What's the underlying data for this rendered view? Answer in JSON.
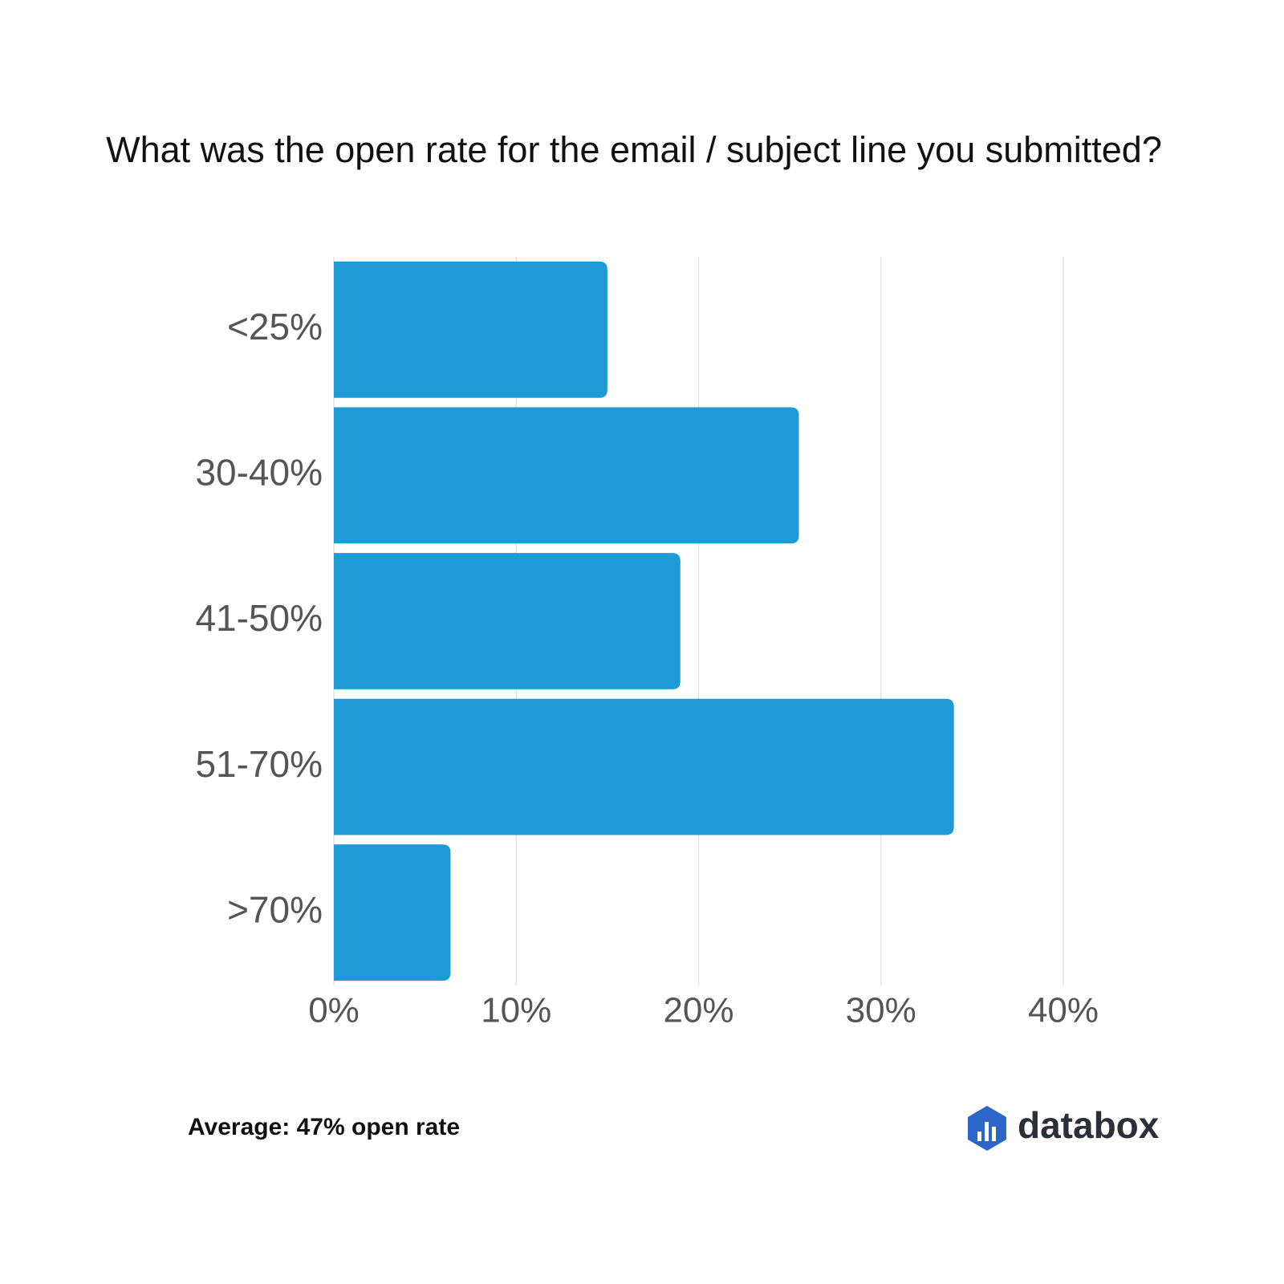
{
  "chart_data": {
    "type": "bar",
    "orientation": "horizontal",
    "title": "What was the open rate for the email / subject line you submitted?",
    "categories": [
      "<25%",
      "30-40%",
      "41-50%",
      "51-70%",
      ">70%"
    ],
    "values": [
      15,
      25.5,
      19,
      34,
      6.4
    ],
    "color": "#1f9ad6",
    "xlim": [
      0,
      40
    ],
    "xticks": [
      {
        "value": 0,
        "label": "0%"
      },
      {
        "value": 10,
        "label": "10%"
      },
      {
        "value": 20,
        "label": "20%"
      },
      {
        "value": 30,
        "label": "30%"
      },
      {
        "value": 40,
        "label": "40%"
      }
    ],
    "grid": true
  },
  "annotation": "Average: 47% open rate",
  "logo_text": "databox"
}
